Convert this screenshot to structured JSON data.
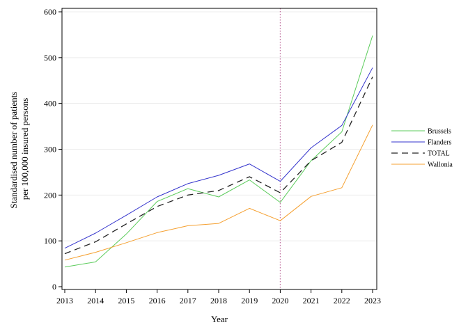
{
  "chart_data": {
    "type": "line",
    "xlabel": "Year",
    "ylabel_lines": [
      "Standardised number of patients",
      "per 100,000 insured persons"
    ],
    "ylim": [
      0,
      600
    ],
    "yticks": [
      0,
      100,
      200,
      300,
      400,
      500,
      600
    ],
    "x": [
      2013,
      2014,
      2015,
      2016,
      2017,
      2018,
      2019,
      2020,
      2021,
      2022,
      2023
    ],
    "x_tick_labels": [
      "2013",
      "2014",
      "2015",
      "2016",
      "2017",
      "2018",
      "2019",
      "2020",
      "2021",
      "2022",
      "2023"
    ],
    "reference_line_x": 2020,
    "grid": "horizontal",
    "legend_position": "right",
    "series": [
      {
        "name": "Brussels",
        "color": "#5ccc5c",
        "dash": "solid",
        "values": [
          43,
          54,
          115,
          186,
          214,
          196,
          233,
          184,
          275,
          338,
          548
        ]
      },
      {
        "name": "Flanders",
        "color": "#3333cc",
        "dash": "solid",
        "values": [
          84,
          117,
          156,
          196,
          225,
          243,
          268,
          230,
          303,
          352,
          478
        ]
      },
      {
        "name": "TOTAL",
        "color": "#222222",
        "dash": "dashed",
        "values": [
          72,
          98,
          137,
          175,
          200,
          210,
          240,
          205,
          275,
          315,
          458
        ]
      },
      {
        "name": "Wallonia",
        "color": "#f5a030",
        "dash": "solid",
        "values": [
          58,
          75,
          96,
          118,
          133,
          138,
          171,
          144,
          197,
          216,
          353
        ]
      }
    ]
  }
}
